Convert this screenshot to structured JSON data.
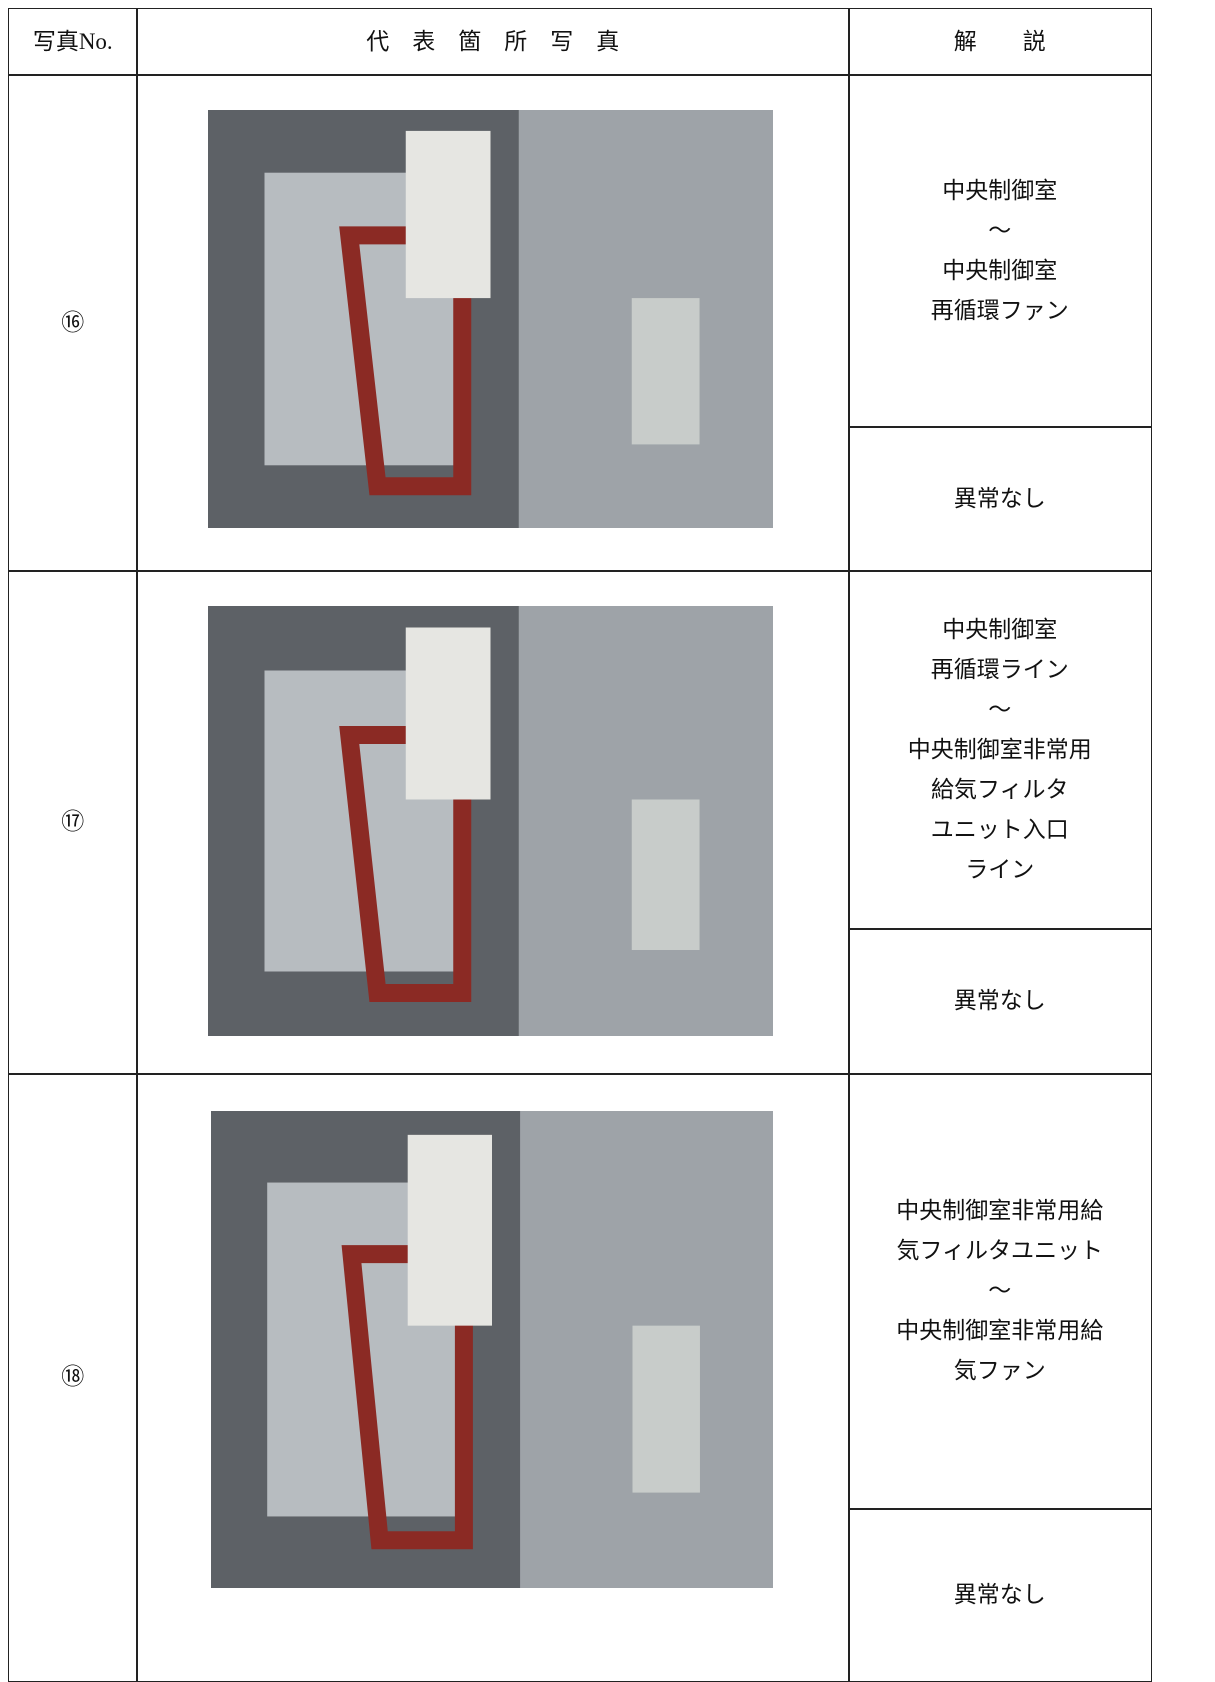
{
  "table": {
    "header": [
      "写真No.",
      "代　表　箇　所　写　真",
      "解　　説"
    ],
    "rows": [
      {
        "no": "⑯",
        "description": [
          "中央制御室",
          "～",
          "中央制御室",
          "再循環ファン"
        ],
        "result": "異常なし"
      },
      {
        "no": "⑰",
        "description": [
          "中央制御室",
          "再循環ライン",
          "～",
          "中央制御室非常用",
          "給気フィルタ",
          "ユニット入口",
          "ライン"
        ],
        "result": "異常なし"
      },
      {
        "no": "⑱",
        "description": [
          "中央制御室非常用給",
          "気フィルタユニット",
          "～",
          "中央制御室非常用給",
          "気ファン"
        ],
        "result": "異常なし"
      }
    ]
  }
}
